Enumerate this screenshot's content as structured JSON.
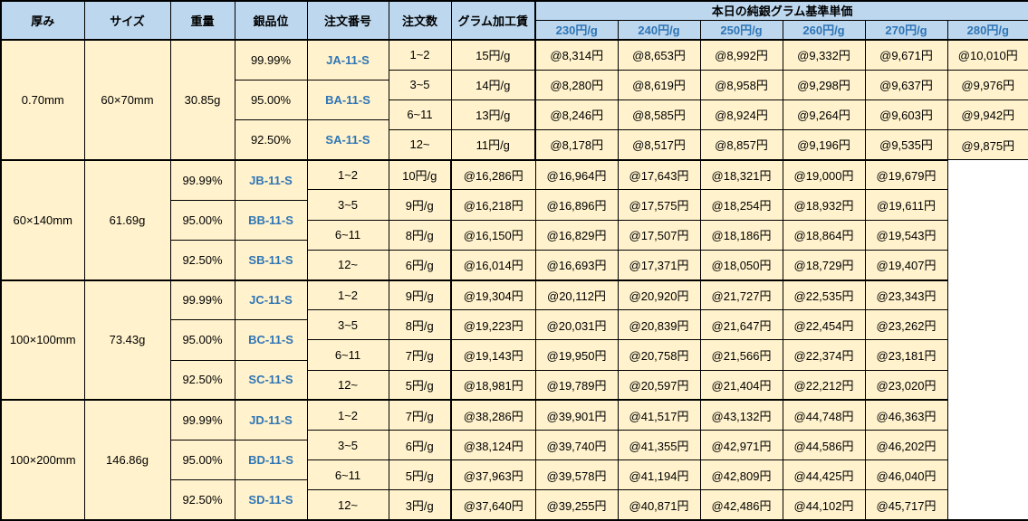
{
  "header": {
    "columns": [
      "厚み",
      "サイズ",
      "重量",
      "銀品位",
      "注文番号",
      "注文数",
      "グラム加工賃"
    ],
    "price_group_title": "本日の純銀グラム基準単価",
    "price_columns": [
      "230円/g",
      "240円/g",
      "250円/g",
      "260円/g",
      "270円/g",
      "280円/g"
    ]
  },
  "thickness": "0.70mm",
  "sections": [
    {
      "size": "60×70mm",
      "weight": "30.85g",
      "purities": [
        {
          "purity": "99.99%",
          "order_no": "JA-11-S"
        },
        {
          "purity": "95.00%",
          "order_no": "BA-11-S"
        },
        {
          "purity": "92.50%",
          "order_no": "SA-11-S"
        }
      ],
      "rows": [
        {
          "qty": "1~2",
          "fee": "15円/g",
          "prices": [
            "@8,314円",
            "@8,653円",
            "@8,992円",
            "@9,332円",
            "@9,671円",
            "@10,010円"
          ]
        },
        {
          "qty": "3~5",
          "fee": "14円/g",
          "prices": [
            "@8,280円",
            "@8,619円",
            "@8,958円",
            "@9,298円",
            "@9,637円",
            "@9,976円"
          ]
        },
        {
          "qty": "6~11",
          "fee": "13円/g",
          "prices": [
            "@8,246円",
            "@8,585円",
            "@8,924円",
            "@9,264円",
            "@9,603円",
            "@9,942円"
          ]
        },
        {
          "qty": "12~",
          "fee": "11円/g",
          "prices": [
            "@8,178円",
            "@8,517円",
            "@8,857円",
            "@9,196円",
            "@9,535円",
            "@9,875円"
          ]
        }
      ]
    },
    {
      "size": "60×140mm",
      "weight": "61.69g",
      "purities": [
        {
          "purity": "99.99%",
          "order_no": "JB-11-S"
        },
        {
          "purity": "95.00%",
          "order_no": "BB-11-S"
        },
        {
          "purity": "92.50%",
          "order_no": "SB-11-S"
        }
      ],
      "rows": [
        {
          "qty": "1~2",
          "fee": "10円/g",
          "prices": [
            "@16,286円",
            "@16,964円",
            "@17,643円",
            "@18,321円",
            "@19,000円",
            "@19,679円"
          ]
        },
        {
          "qty": "3~5",
          "fee": "9円/g",
          "prices": [
            "@16,218円",
            "@16,896円",
            "@17,575円",
            "@18,254円",
            "@18,932円",
            "@19,611円"
          ]
        },
        {
          "qty": "6~11",
          "fee": "8円/g",
          "prices": [
            "@16,150円",
            "@16,829円",
            "@17,507円",
            "@18,186円",
            "@18,864円",
            "@19,543円"
          ]
        },
        {
          "qty": "12~",
          "fee": "6円/g",
          "prices": [
            "@16,014円",
            "@16,693円",
            "@17,371円",
            "@18,050円",
            "@18,729円",
            "@19,407円"
          ]
        }
      ]
    },
    {
      "size": "100×100mm",
      "weight": "73.43g",
      "purities": [
        {
          "purity": "99.99%",
          "order_no": "JC-11-S"
        },
        {
          "purity": "95.00%",
          "order_no": "BC-11-S"
        },
        {
          "purity": "92.50%",
          "order_no": "SC-11-S"
        }
      ],
      "rows": [
        {
          "qty": "1~2",
          "fee": "9円/g",
          "prices": [
            "@19,304円",
            "@20,112円",
            "@20,920円",
            "@21,727円",
            "@22,535円",
            "@23,343円"
          ]
        },
        {
          "qty": "3~5",
          "fee": "8円/g",
          "prices": [
            "@19,223円",
            "@20,031円",
            "@20,839円",
            "@21,647円",
            "@22,454円",
            "@23,262円"
          ]
        },
        {
          "qty": "6~11",
          "fee": "7円/g",
          "prices": [
            "@19,143円",
            "@19,950円",
            "@20,758円",
            "@21,566円",
            "@22,374円",
            "@23,181円"
          ]
        },
        {
          "qty": "12~",
          "fee": "5円/g",
          "prices": [
            "@18,981円",
            "@19,789円",
            "@20,597円",
            "@21,404円",
            "@22,212円",
            "@23,020円"
          ]
        }
      ]
    },
    {
      "size": "100×200mm",
      "weight": "146.86g",
      "purities": [
        {
          "purity": "99.99%",
          "order_no": "JD-11-S"
        },
        {
          "purity": "95.00%",
          "order_no": "BD-11-S"
        },
        {
          "purity": "92.50%",
          "order_no": "SD-11-S"
        }
      ],
      "rows": [
        {
          "qty": "1~2",
          "fee": "7円/g",
          "prices": [
            "@38,286円",
            "@39,901円",
            "@41,517円",
            "@43,132円",
            "@44,748円",
            "@46,363円"
          ]
        },
        {
          "qty": "3~5",
          "fee": "6円/g",
          "prices": [
            "@38,124円",
            "@39,740円",
            "@41,355円",
            "@42,971円",
            "@44,586円",
            "@46,202円"
          ]
        },
        {
          "qty": "6~11",
          "fee": "5円/g",
          "prices": [
            "@37,963円",
            "@39,578円",
            "@41,194円",
            "@42,809円",
            "@44,425円",
            "@46,040円"
          ]
        },
        {
          "qty": "12~",
          "fee": "3円/g",
          "prices": [
            "@37,640円",
            "@39,255円",
            "@40,871円",
            "@42,486円",
            "@44,102円",
            "@45,717円"
          ]
        }
      ]
    }
  ],
  "colors": {
    "header_bg": "#BDD7EE",
    "cell_bg": "#FFF2CC",
    "accent_blue": "#2E75B6",
    "border": "#000000"
  }
}
